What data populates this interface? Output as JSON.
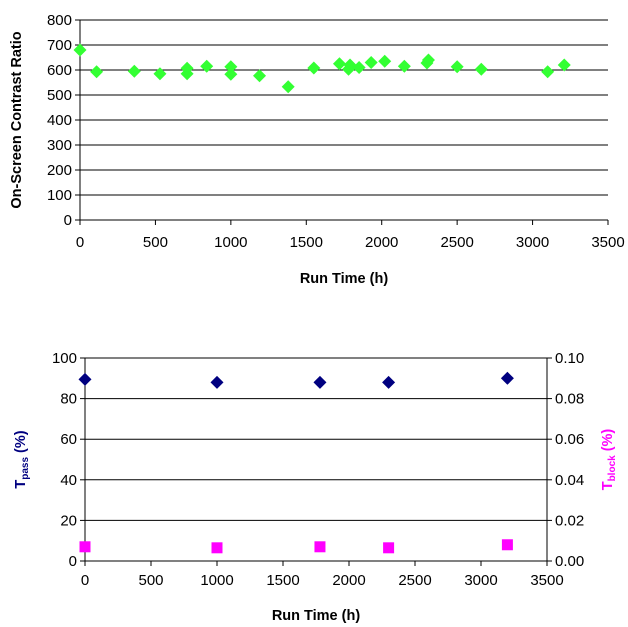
{
  "chart_data": [
    {
      "type": "scatter",
      "xlabel": "Run Time (h)",
      "ylabel": "On-Screen Contrast Ratio",
      "xlim": [
        0,
        3500
      ],
      "ylim": [
        0,
        800
      ],
      "xticks": [
        "0",
        "500",
        "1000",
        "1500",
        "2000",
        "2500",
        "3000",
        "3500"
      ],
      "yticks": [
        "0",
        "100",
        "200",
        "300",
        "400",
        "500",
        "600",
        "700",
        "800"
      ],
      "grid": "horizontal",
      "series": [
        {
          "marker": "diamond",
          "color": "#33ff33",
          "points": [
            [
              0,
              680
            ],
            [
              110,
              593
            ],
            [
              360,
              595
            ],
            [
              530,
              585
            ],
            [
              710,
              585
            ],
            [
              710,
              607
            ],
            [
              840,
              615
            ],
            [
              1000,
              583
            ],
            [
              1000,
              613
            ],
            [
              1190,
              577
            ],
            [
              1380,
              533
            ],
            [
              1550,
              608
            ],
            [
              1720,
              625
            ],
            [
              1780,
              603
            ],
            [
              1790,
              620
            ],
            [
              1850,
              610
            ],
            [
              1930,
              630
            ],
            [
              2020,
              635
            ],
            [
              2150,
              615
            ],
            [
              2300,
              628
            ],
            [
              2310,
              640
            ],
            [
              2500,
              613
            ],
            [
              2660,
              603
            ],
            [
              3100,
              593
            ],
            [
              3210,
              620
            ]
          ]
        }
      ]
    },
    {
      "type": "scatter",
      "xlabel": "Run Time (h)",
      "ylabel_left": {
        "main": "T",
        "sub": "pass",
        "unit": " (%)"
      },
      "ylabel_right": {
        "main": "T",
        "sub": "block",
        "unit": " (%)"
      },
      "xlim": [
        0,
        3500
      ],
      "ylim_left": [
        0,
        100
      ],
      "ylim_right": [
        0,
        0.1
      ],
      "xticks": [
        "0",
        "500",
        "1000",
        "1500",
        "2000",
        "2500",
        "3000",
        "3500"
      ],
      "yticks_left": [
        "0",
        "20",
        "40",
        "60",
        "80",
        "100"
      ],
      "yticks_right": [
        "0.00",
        "0.02",
        "0.04",
        "0.06",
        "0.08",
        "0.10"
      ],
      "grid": "horizontal",
      "series": [
        {
          "axis": "left",
          "marker": "diamond",
          "color": "#000080",
          "points": [
            [
              0,
              89.5
            ],
            [
              1000,
              88
            ],
            [
              1780,
              88
            ],
            [
              2300,
              88
            ],
            [
              3200,
              90
            ]
          ]
        },
        {
          "axis": "right",
          "marker": "square",
          "color": "#ff00ff",
          "points": [
            [
              0,
              0.007
            ],
            [
              1000,
              0.0065
            ],
            [
              1780,
              0.007
            ],
            [
              2300,
              0.0065
            ],
            [
              3200,
              0.008
            ]
          ]
        }
      ]
    }
  ]
}
